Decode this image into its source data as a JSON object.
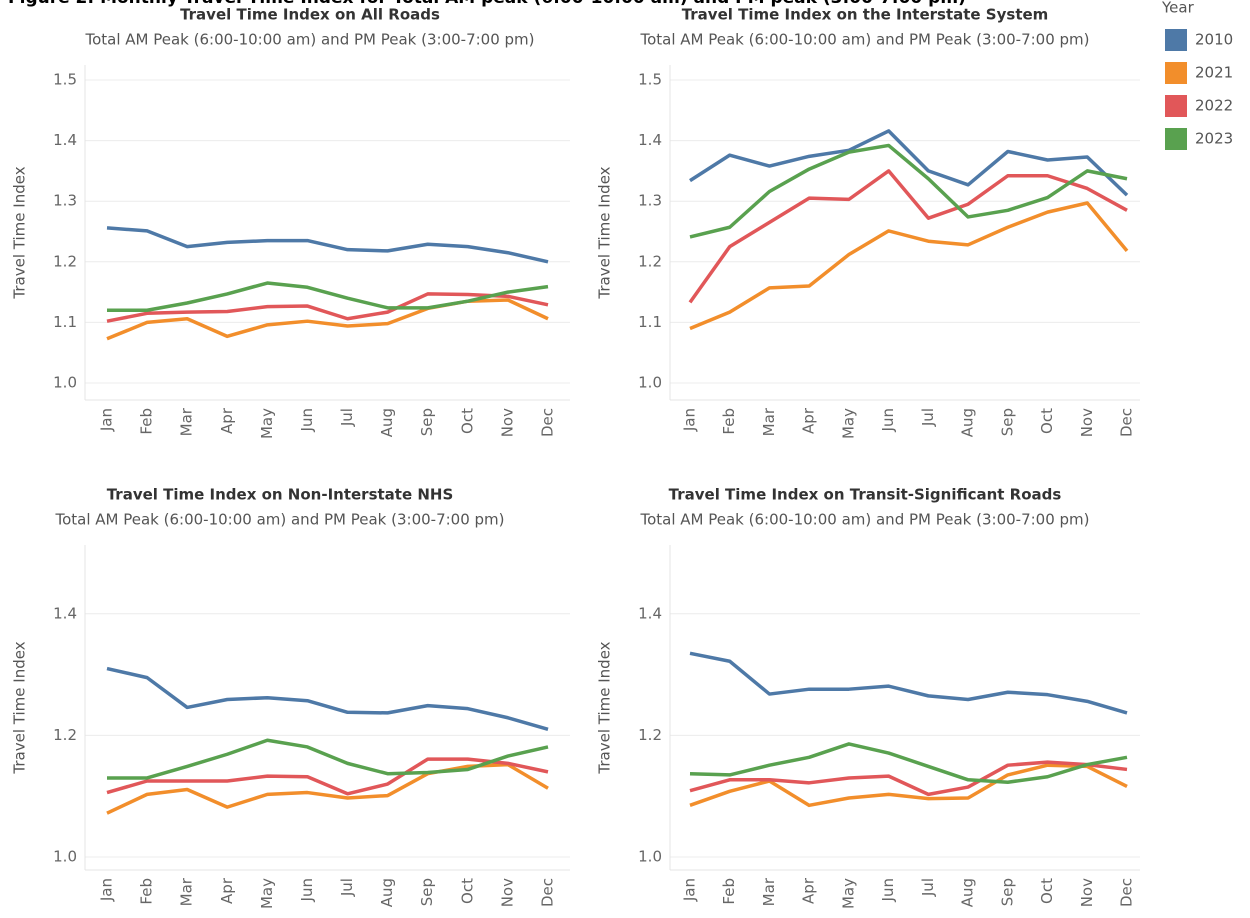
{
  "figure_title": "Figure 2: Monthly Travel Time Index for Total AM peak (6:00-10:00 am) and PM peak (3:00-7:00 pm)",
  "legend": {
    "title": "Year",
    "position": "right"
  },
  "chart_data": [
    {
      "type": "line",
      "title": "Travel Time Index on All Roads",
      "subtitle": "Total AM Peak (6:00-10:00 am) and PM Peak (3:00-7:00 pm)",
      "y_label": "Travel Time Index",
      "categories": [
        "Jan",
        "Feb",
        "Mar",
        "Apr",
        "May",
        "Jun",
        "Jul",
        "Aug",
        "Sep",
        "Oct",
        "Nov",
        "Dec"
      ],
      "ylim": [
        1.0,
        1.5
      ],
      "yticks": [
        {
          "value": 1,
          "label": "1.0"
        },
        1.1,
        1.2,
        1.3,
        1.4,
        1.5
      ],
      "grid": true,
      "series": [
        {
          "name": "2010",
          "color": "#4e79a7",
          "values": [
            1.256,
            1.251,
            1.225,
            1.232,
            1.235,
            1.235,
            1.22,
            1.218,
            1.229,
            1.225,
            1.215,
            1.2
          ]
        },
        {
          "name": "2021",
          "color": "#f28e2b",
          "values": [
            1.073,
            1.1,
            1.106,
            1.077,
            1.096,
            1.102,
            1.094,
            1.098,
            1.123,
            1.135,
            1.137,
            1.106
          ]
        },
        {
          "name": "2022",
          "color": "#e15759",
          "values": [
            1.102,
            1.115,
            1.117,
            1.118,
            1.126,
            1.127,
            1.106,
            1.117,
            1.147,
            1.146,
            1.143,
            1.129
          ]
        },
        {
          "name": "2023",
          "color": "#59a14f",
          "values": [
            1.12,
            1.12,
            1.132,
            1.147,
            1.165,
            1.158,
            1.14,
            1.124,
            1.124,
            1.135,
            1.15,
            1.159
          ]
        }
      ]
    },
    {
      "type": "line",
      "title": "Travel Time Index on the Interstate System",
      "subtitle": "Total AM Peak (6:00-10:00 am) and PM Peak (3:00-7:00 pm)",
      "y_label": "Travel Time Index",
      "categories": [
        "Jan",
        "Feb",
        "Mar",
        "Apr",
        "May",
        "Jun",
        "Jul",
        "Aug",
        "Sep",
        "Oct",
        "Nov",
        "Dec"
      ],
      "ylim": [
        1.0,
        1.5
      ],
      "yticks": [
        {
          "value": 1,
          "label": "1.0"
        },
        1.1,
        1.2,
        1.3,
        1.4,
        1.5
      ],
      "grid": true,
      "series": [
        {
          "name": "2010",
          "color": "#4e79a7",
          "values": [
            1.334,
            1.376,
            1.358,
            1.374,
            1.384,
            1.416,
            1.35,
            1.327,
            1.382,
            1.368,
            1.373,
            1.31
          ]
        },
        {
          "name": "2021",
          "color": "#f28e2b",
          "values": [
            1.09,
            1.117,
            1.157,
            1.16,
            1.212,
            1.251,
            1.234,
            1.228,
            1.257,
            1.282,
            1.297,
            1.218
          ]
        },
        {
          "name": "2022",
          "color": "#e15759",
          "values": [
            1.133,
            1.225,
            1.265,
            1.305,
            1.303,
            1.35,
            1.272,
            1.295,
            1.342,
            1.342,
            1.321,
            1.285
          ]
        },
        {
          "name": "2023",
          "color": "#59a14f",
          "values": [
            1.241,
            1.257,
            1.316,
            1.353,
            1.381,
            1.392,
            1.337,
            1.274,
            1.285,
            1.306,
            1.35,
            1.337
          ]
        }
      ]
    },
    {
      "type": "line",
      "title": "Travel Time Index on Non-Interstate NHS",
      "subtitle": "Total AM Peak (6:00-10:00 am) and PM Peak (3:00-7:00 pm)",
      "y_label": "Travel Time Index",
      "categories": [
        "Jan",
        "Feb",
        "Mar",
        "Apr",
        "May",
        "Jun",
        "Jul",
        "Aug",
        "Sep",
        "Oct",
        "Nov",
        "Dec"
      ],
      "ylim": [
        1.0,
        1.5
      ],
      "yticks": [
        {
          "value": 1,
          "label": "1.0"
        },
        1.2,
        1.4
      ],
      "grid": true,
      "series": [
        {
          "name": "2010",
          "color": "#4e79a7",
          "values": [
            1.31,
            1.295,
            1.246,
            1.259,
            1.262,
            1.257,
            1.238,
            1.237,
            1.249,
            1.244,
            1.229,
            1.21
          ]
        },
        {
          "name": "2021",
          "color": "#f28e2b",
          "values": [
            1.072,
            1.103,
            1.111,
            1.082,
            1.103,
            1.106,
            1.097,
            1.101,
            1.137,
            1.149,
            1.152,
            1.113
          ]
        },
        {
          "name": "2022",
          "color": "#e15759",
          "values": [
            1.106,
            1.125,
            1.125,
            1.125,
            1.133,
            1.132,
            1.104,
            1.12,
            1.161,
            1.161,
            1.154,
            1.14
          ]
        },
        {
          "name": "2023",
          "color": "#59a14f",
          "values": [
            1.13,
            1.13,
            1.149,
            1.169,
            1.192,
            1.181,
            1.154,
            1.137,
            1.139,
            1.144,
            1.166,
            1.181
          ]
        }
      ]
    },
    {
      "type": "line",
      "title": "Travel Time Index on Transit-Significant Roads",
      "subtitle": "Total AM Peak (6:00-10:00 am) and PM Peak (3:00-7:00 pm)",
      "y_label": "Travel Time Index",
      "categories": [
        "Jan",
        "Feb",
        "Mar",
        "Apr",
        "May",
        "Jun",
        "Jul",
        "Aug",
        "Sep",
        "Oct",
        "Nov",
        "Dec"
      ],
      "ylim": [
        1.0,
        1.5
      ],
      "yticks": [
        {
          "value": 1,
          "label": "1.0"
        },
        1.2,
        1.4
      ],
      "grid": true,
      "series": [
        {
          "name": "2010",
          "color": "#4e79a7",
          "values": [
            1.335,
            1.322,
            1.268,
            1.276,
            1.276,
            1.281,
            1.265,
            1.259,
            1.271,
            1.267,
            1.256,
            1.237
          ]
        },
        {
          "name": "2021",
          "color": "#f28e2b",
          "values": [
            1.085,
            1.108,
            1.125,
            1.085,
            1.097,
            1.103,
            1.096,
            1.097,
            1.135,
            1.151,
            1.149,
            1.116
          ]
        },
        {
          "name": "2022",
          "color": "#e15759",
          "values": [
            1.109,
            1.127,
            1.127,
            1.122,
            1.13,
            1.133,
            1.103,
            1.115,
            1.151,
            1.156,
            1.152,
            1.144
          ]
        },
        {
          "name": "2023",
          "color": "#59a14f",
          "values": [
            1.137,
            1.135,
            1.151,
            1.164,
            1.186,
            1.171,
            1.149,
            1.127,
            1.123,
            1.132,
            1.152,
            1.164
          ]
        }
      ]
    }
  ]
}
